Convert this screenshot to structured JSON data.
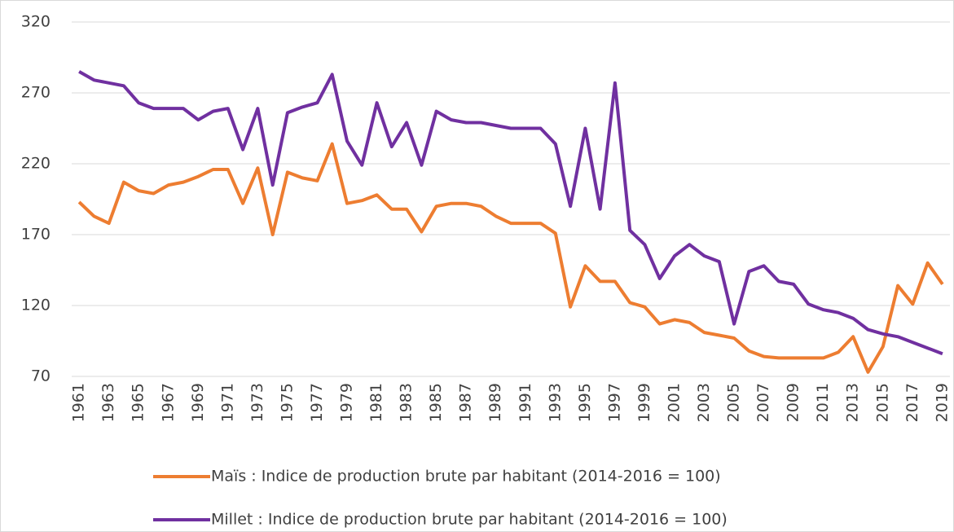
{
  "chart_data": {
    "type": "line",
    "categories": [
      "1961",
      null,
      "1963",
      null,
      "1965",
      null,
      "1967",
      null,
      "1969",
      null,
      "1971",
      null,
      "1973",
      null,
      "1975",
      null,
      "1977",
      null,
      "1979",
      null,
      "1981",
      null,
      "1983",
      null,
      "1985",
      null,
      "1987",
      null,
      "1989",
      null,
      "1991",
      null,
      "1993",
      null,
      "1995",
      null,
      "1997",
      null,
      "1999",
      null,
      "2001",
      null,
      "2003",
      null,
      "2005",
      null,
      "2007",
      null,
      "2009",
      null,
      "2011",
      null,
      "2013",
      null,
      "2015",
      null,
      "2017",
      null,
      "2019"
    ],
    "series": [
      {
        "name": "Maïs : Indice de production brute par habitant (2014-2016 = 100)",
        "color": "#ed7d31",
        "values": [
          193,
          183,
          178,
          207,
          201,
          199,
          205,
          207,
          211,
          216,
          216,
          192,
          217,
          170,
          214,
          210,
          208,
          234,
          192,
          194,
          198,
          188,
          188,
          172,
          190,
          192,
          192,
          190,
          183,
          178,
          178,
          178,
          171,
          119,
          148,
          137,
          137,
          122,
          119,
          107,
          110,
          108,
          101,
          99,
          97,
          88,
          84,
          83,
          83,
          83,
          83,
          87,
          98,
          73,
          91,
          134,
          121,
          150,
          135
        ]
      },
      {
        "name": "Millet : Indice de production brute par habitant (2014-2016 = 100)",
        "color": "#7030a0",
        "values": [
          285,
          279,
          277,
          275,
          263,
          259,
          259,
          259,
          251,
          257,
          259,
          230,
          259,
          205,
          256,
          260,
          263,
          283,
          236,
          219,
          263,
          232,
          249,
          219,
          257,
          251,
          249,
          249,
          247,
          245,
          245,
          245,
          234,
          190,
          245,
          188,
          277,
          173,
          163,
          139,
          155,
          163,
          155,
          151,
          107,
          144,
          148,
          137,
          135,
          121,
          117,
          115,
          111,
          103,
          100,
          98,
          94,
          90,
          86
        ]
      }
    ],
    "ylim": [
      70,
      320
    ],
    "yticks": [
      70,
      120,
      170,
      220,
      270,
      320
    ],
    "grid": true,
    "legend": "bottom"
  }
}
